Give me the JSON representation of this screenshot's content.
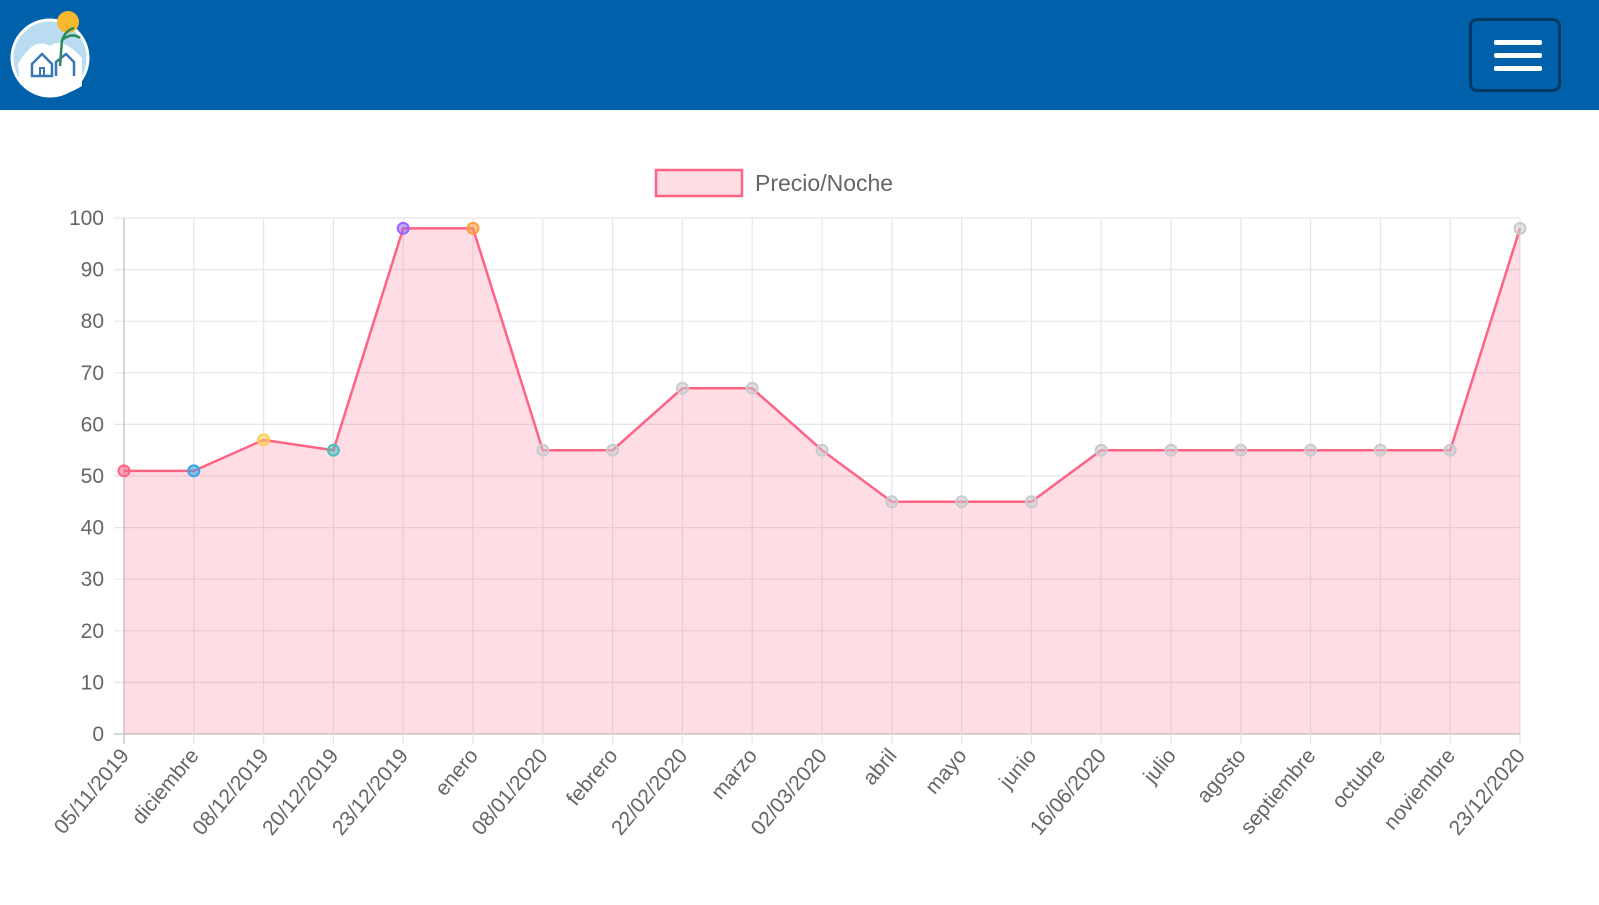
{
  "header": {
    "logo_icon": "beach-house-logo",
    "menu_icon": "hamburger-icon",
    "background_color": "#0061aa"
  },
  "chart_data": {
    "type": "area",
    "legend": {
      "label": "Precio/Noche",
      "position": "top"
    },
    "categories": [
      "05/11/2019",
      "diciembre",
      "08/12/2019",
      "20/12/2019",
      "23/12/2019",
      "enero",
      "08/01/2020",
      "febrero",
      "22/02/2020",
      "marzo",
      "02/03/2020",
      "abril",
      "mayo",
      "junio",
      "16/06/2020",
      "julio",
      "agosto",
      "septiembre",
      "octubre",
      "noviembre",
      "23/12/2020"
    ],
    "series": [
      {
        "name": "Precio/Noche",
        "values": [
          51,
          51,
          57,
          55,
          98,
          98,
          55,
          55,
          67,
          67,
          55,
          45,
          45,
          45,
          55,
          55,
          55,
          55,
          55,
          55,
          98
        ],
        "line_color": "#ff6384",
        "fill_color": "rgba(255, 99, 132, 0.22)",
        "point_colors": [
          "#ff6384",
          "#36a2eb",
          "#ffce56",
          "#4bc0c0",
          "#9966ff",
          "#ff9f40",
          "#c9cbcf",
          "#c9cbcf",
          "#c9cbcf",
          "#c9cbcf",
          "#c9cbcf",
          "#c9cbcf",
          "#c9cbcf",
          "#c9cbcf",
          "#c9cbcf",
          "#c9cbcf",
          "#c9cbcf",
          "#c9cbcf",
          "#c9cbcf",
          "#c9cbcf",
          "#c9cbcf"
        ]
      }
    ],
    "ylim": [
      0,
      100
    ],
    "yticks": [
      "0",
      "10",
      "20",
      "30",
      "40",
      "50",
      "60",
      "70",
      "80",
      "90",
      "100"
    ],
    "grid": true,
    "xlabel": "",
    "ylabel": ""
  }
}
